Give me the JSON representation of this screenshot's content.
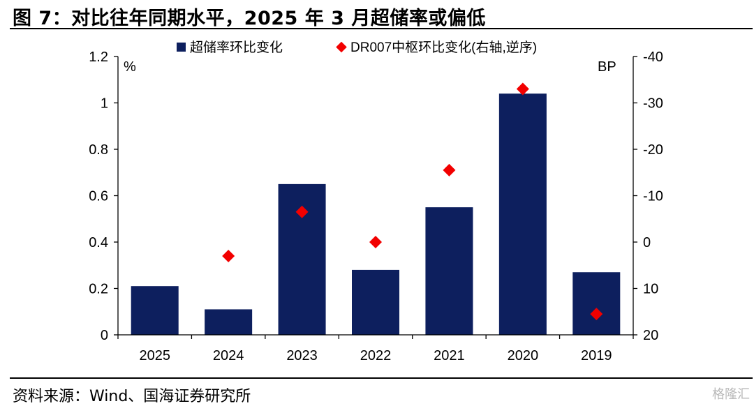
{
  "title": "图 7：对比往年同期水平，2025 年 3 月超储率或偏低",
  "source": "资料来源：Wind、国海证券研究所",
  "watermark": "格隆汇",
  "colors": {
    "bar": "#0d1f5e",
    "marker": "#f20000",
    "axis": "#000000"
  },
  "chart_data": {
    "type": "bar",
    "categories": [
      "2025",
      "2024",
      "2023",
      "2022",
      "2021",
      "2020",
      "2019"
    ],
    "series": [
      {
        "name": "超储率环比变化",
        "axis": "left",
        "type": "bar",
        "values": [
          0.21,
          0.11,
          0.65,
          0.28,
          0.55,
          1.04,
          0.27
        ]
      },
      {
        "name": "DR007中枢环比变化(右轴,逆序)",
        "axis": "right",
        "type": "scatter",
        "values": [
          null,
          3,
          -6.5,
          0,
          -15.5,
          -33,
          15.5
        ]
      }
    ],
    "left_axis": {
      "unit": "%",
      "min": 0,
      "max": 1.2,
      "ticks": [
        0,
        0.2,
        0.4,
        0.6,
        0.8,
        1,
        1.2
      ],
      "tick_labels": [
        "0",
        "0.2",
        "0.4",
        "0.6",
        "0.8",
        "1",
        "1.2"
      ]
    },
    "right_axis": {
      "unit": "BP",
      "inverted": true,
      "min": -40,
      "max": 20,
      "ticks": [
        -40,
        -30,
        -20,
        -10,
        0,
        10,
        20
      ],
      "tick_labels": [
        "-40",
        "-30",
        "-20",
        "-10",
        "0",
        "10",
        "20"
      ]
    },
    "legend": {
      "placement": "top"
    }
  }
}
